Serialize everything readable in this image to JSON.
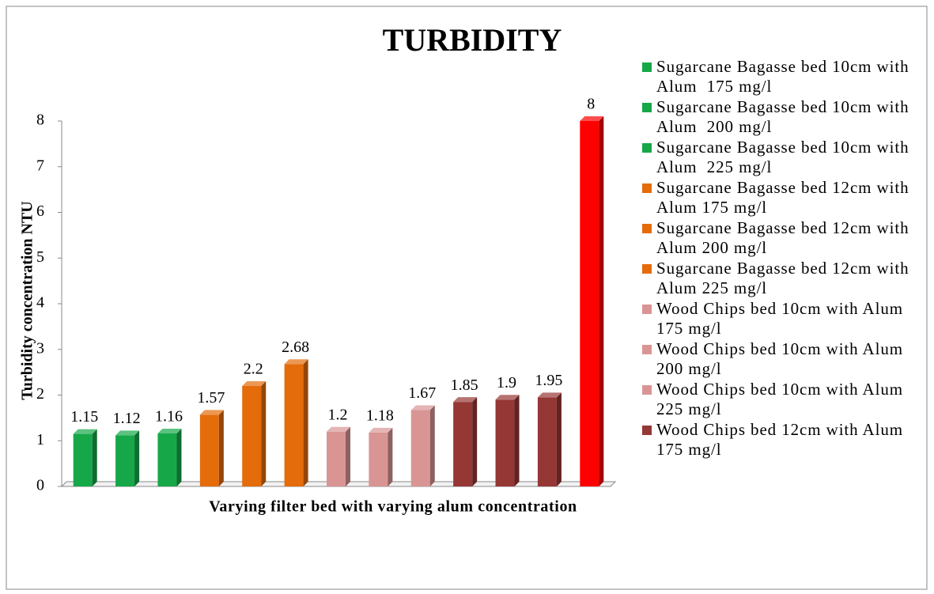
{
  "chart_data": {
    "type": "bar",
    "title": "TURBIDITY",
    "xlabel": "Varying filter bed with varying alum concentration",
    "ylabel": "Turbidity concentration NTU",
    "categories": [
      "Sugarcane Bagasse bed 10cm with Alum  175 mg/l",
      "Sugarcane Bagasse bed 10cm with Alum  200 mg/l",
      "Sugarcane Bagasse bed 10cm with Alum  225 mg/l",
      "Sugarcane Bagasse bed 12cm with Alum 175 mg/l",
      "Sugarcane Bagasse bed 12cm with Alum 200 mg/l",
      "Sugarcane Bagasse bed 12cm with Alum 225 mg/l",
      "Wood Chips bed 10cm with Alum 175 mg/l",
      "Wood Chips bed 10cm with Alum 200 mg/l",
      "Wood Chips bed 10cm with Alum 225 mg/l",
      "Wood Chips bed 12cm with Alum 175 mg/l",
      null,
      null,
      null
    ],
    "values": [
      1.15,
      1.12,
      1.16,
      1.57,
      2.2,
      2.68,
      1.2,
      1.18,
      1.67,
      1.85,
      1.9,
      1.95,
      8
    ],
    "colors": [
      "#16a848",
      "#16a848",
      "#16a848",
      "#e46c0a",
      "#e46c0a",
      "#e46c0a",
      "#d99594",
      "#d99594",
      "#d99594",
      "#953735",
      "#953735",
      "#953735",
      "#ff0000"
    ],
    "ylim": [
      0,
      8
    ],
    "yticks": [
      0,
      1,
      2,
      3,
      4,
      5,
      6,
      7,
      8
    ],
    "grid": false,
    "legend": "right"
  }
}
